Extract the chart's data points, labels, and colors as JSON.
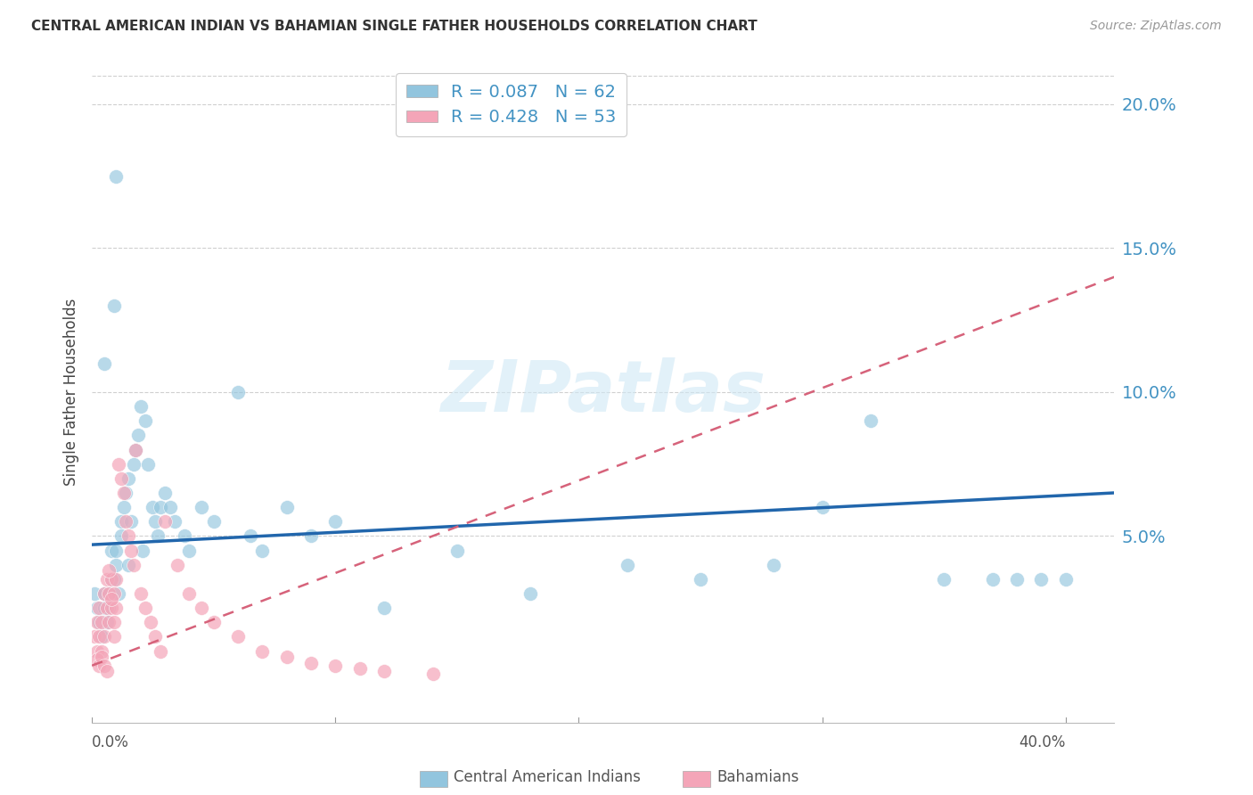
{
  "title": "CENTRAL AMERICAN INDIAN VS BAHAMIAN SINGLE FATHER HOUSEHOLDS CORRELATION CHART",
  "source": "Source: ZipAtlas.com",
  "ylabel": "Single Father Households",
  "ytick_labels": [
    "5.0%",
    "10.0%",
    "15.0%",
    "20.0%"
  ],
  "ytick_values": [
    0.05,
    0.1,
    0.15,
    0.2
  ],
  "xlim": [
    0.0,
    0.42
  ],
  "ylim": [
    -0.015,
    0.215
  ],
  "watermark_text": "ZIPatlas",
  "blue_R": 0.087,
  "blue_N": 62,
  "pink_R": 0.428,
  "pink_N": 53,
  "blue_color": "#92c5de",
  "pink_color": "#f4a5b8",
  "blue_line_color": "#2166ac",
  "pink_line_color": "#d6627a",
  "right_axis_color": "#4393c3",
  "blue_scatter_x": [
    0.001,
    0.002,
    0.003,
    0.004,
    0.005,
    0.005,
    0.006,
    0.007,
    0.007,
    0.008,
    0.008,
    0.009,
    0.01,
    0.01,
    0.011,
    0.012,
    0.012,
    0.013,
    0.014,
    0.015,
    0.015,
    0.016,
    0.017,
    0.018,
    0.019,
    0.02,
    0.021,
    0.022,
    0.023,
    0.025,
    0.026,
    0.027,
    0.028,
    0.03,
    0.032,
    0.034,
    0.038,
    0.04,
    0.045,
    0.05,
    0.06,
    0.065,
    0.07,
    0.08,
    0.09,
    0.1,
    0.12,
    0.15,
    0.18,
    0.22,
    0.25,
    0.28,
    0.3,
    0.32,
    0.35,
    0.37,
    0.38,
    0.39,
    0.4,
    0.005,
    0.009,
    0.01
  ],
  "blue_scatter_y": [
    0.03,
    0.025,
    0.02,
    0.015,
    0.025,
    0.03,
    0.02,
    0.025,
    0.03,
    0.035,
    0.045,
    0.035,
    0.04,
    0.045,
    0.03,
    0.05,
    0.055,
    0.06,
    0.065,
    0.07,
    0.04,
    0.055,
    0.075,
    0.08,
    0.085,
    0.095,
    0.045,
    0.09,
    0.075,
    0.06,
    0.055,
    0.05,
    0.06,
    0.065,
    0.06,
    0.055,
    0.05,
    0.045,
    0.06,
    0.055,
    0.1,
    0.05,
    0.045,
    0.06,
    0.05,
    0.055,
    0.025,
    0.045,
    0.03,
    0.04,
    0.035,
    0.04,
    0.06,
    0.09,
    0.035,
    0.035,
    0.035,
    0.035,
    0.035,
    0.11,
    0.13,
    0.175
  ],
  "pink_scatter_x": [
    0.001,
    0.002,
    0.002,
    0.003,
    0.003,
    0.004,
    0.004,
    0.005,
    0.005,
    0.006,
    0.006,
    0.007,
    0.007,
    0.008,
    0.008,
    0.009,
    0.009,
    0.01,
    0.01,
    0.011,
    0.012,
    0.013,
    0.014,
    0.015,
    0.016,
    0.017,
    0.018,
    0.02,
    0.022,
    0.024,
    0.026,
    0.028,
    0.03,
    0.035,
    0.04,
    0.045,
    0.05,
    0.06,
    0.07,
    0.08,
    0.09,
    0.1,
    0.11,
    0.12,
    0.14,
    0.002,
    0.003,
    0.004,
    0.005,
    0.006,
    0.007,
    0.008,
    0.009
  ],
  "pink_scatter_y": [
    0.015,
    0.01,
    0.02,
    0.015,
    0.025,
    0.01,
    0.02,
    0.015,
    0.03,
    0.025,
    0.035,
    0.02,
    0.03,
    0.025,
    0.035,
    0.02,
    0.03,
    0.025,
    0.035,
    0.075,
    0.07,
    0.065,
    0.055,
    0.05,
    0.045,
    0.04,
    0.08,
    0.03,
    0.025,
    0.02,
    0.015,
    0.01,
    0.055,
    0.04,
    0.03,
    0.025,
    0.02,
    0.015,
    0.01,
    0.008,
    0.006,
    0.005,
    0.004,
    0.003,
    0.002,
    0.007,
    0.005,
    0.008,
    0.005,
    0.003,
    0.038,
    0.028,
    0.015
  ],
  "blue_trend_x0": 0.0,
  "blue_trend_x1": 0.42,
  "blue_trend_y0": 0.047,
  "blue_trend_y1": 0.065,
  "pink_trend_x0": 0.0,
  "pink_trend_x1": 0.42,
  "pink_trend_y0": 0.005,
  "pink_trend_y1": 0.14,
  "legend_blue_label": "Central American Indians",
  "legend_pink_label": "Bahamians",
  "background_color": "#ffffff",
  "grid_color": "#d0d0d0"
}
